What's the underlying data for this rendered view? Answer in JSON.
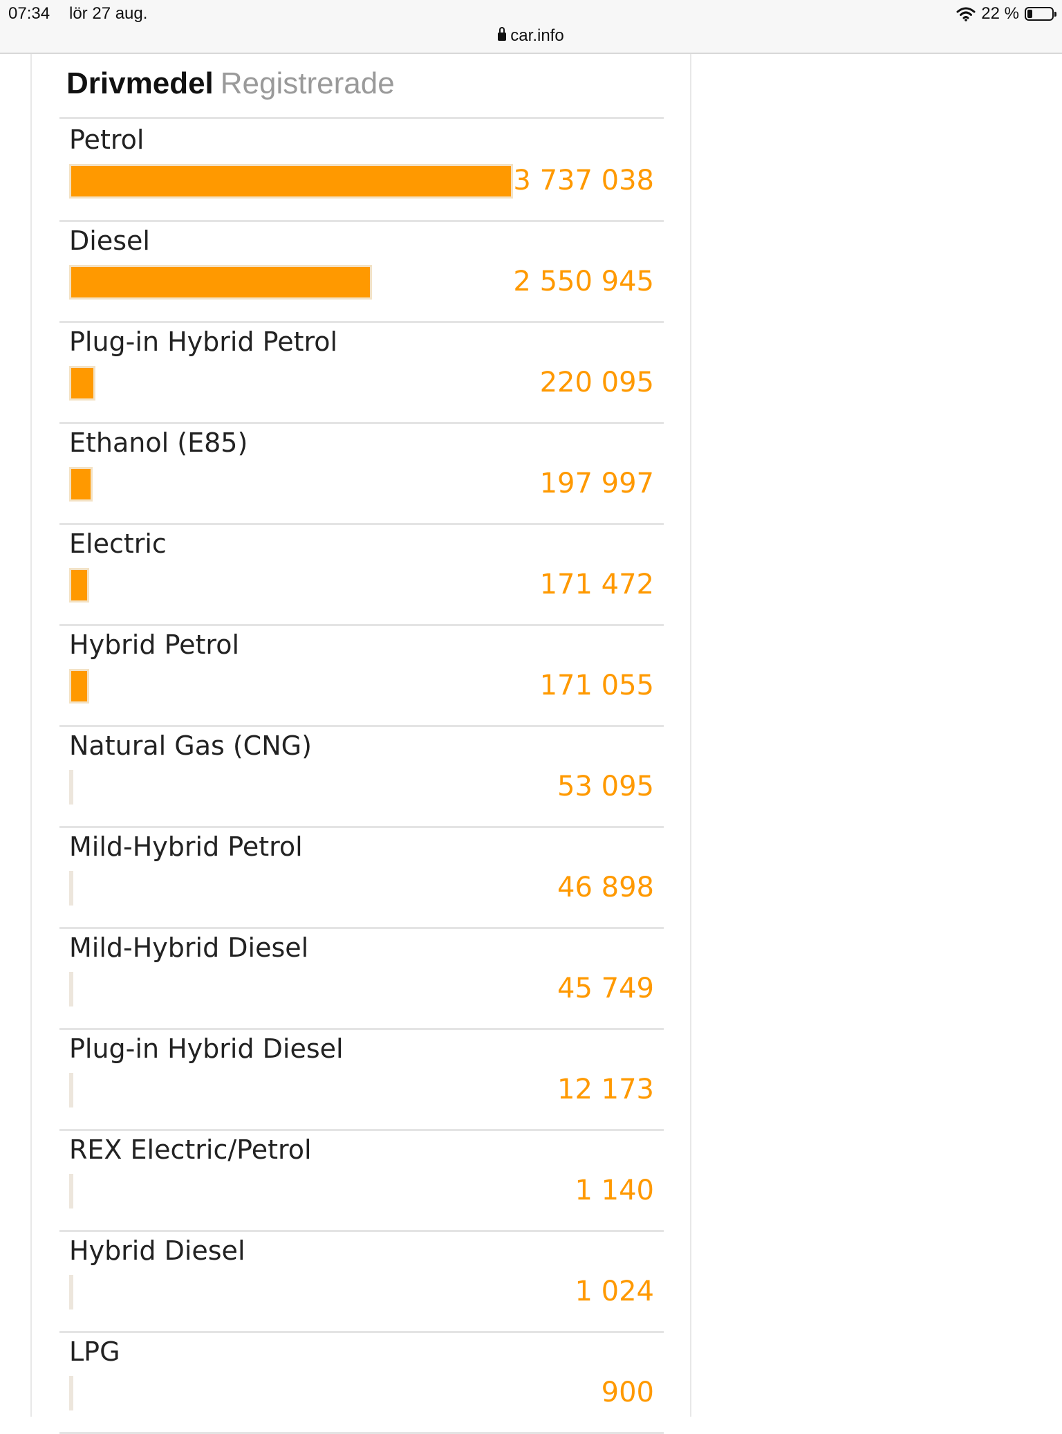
{
  "statusbar": {
    "time": "07:34",
    "date": "lör 27 aug.",
    "url": "car.info",
    "battery_percent": "22 %",
    "battery_level": 0.22
  },
  "card": {
    "title": "Drivmedel",
    "subtitle": "Registrerade"
  },
  "chart_data": {
    "type": "bar",
    "title": "Drivmedel",
    "subtitle": "Registrerade",
    "categories": [
      "Petrol",
      "Diesel",
      "Plug-in Hybrid Petrol",
      "Ethanol (E85)",
      "Electric",
      "Hybrid Petrol",
      "Natural Gas (CNG)",
      "Mild-Hybrid Petrol",
      "Mild-Hybrid Diesel",
      "Plug-in Hybrid Diesel",
      "REX Electric/Petrol",
      "Hybrid Diesel",
      "LPG"
    ],
    "values": [
      3737038,
      2550945,
      220095,
      197997,
      171472,
      171055,
      53095,
      46898,
      45749,
      12173,
      1140,
      1024,
      900
    ],
    "value_labels": [
      "3 737 038",
      "2 550 945",
      "220 095",
      "197 997",
      "171 472",
      "171 055",
      "53 095",
      "46 898",
      "45 749",
      "12 173",
      "1 140",
      "1 024",
      "900"
    ],
    "bar_color": "#ff9900",
    "value_color": "#ff9900"
  }
}
